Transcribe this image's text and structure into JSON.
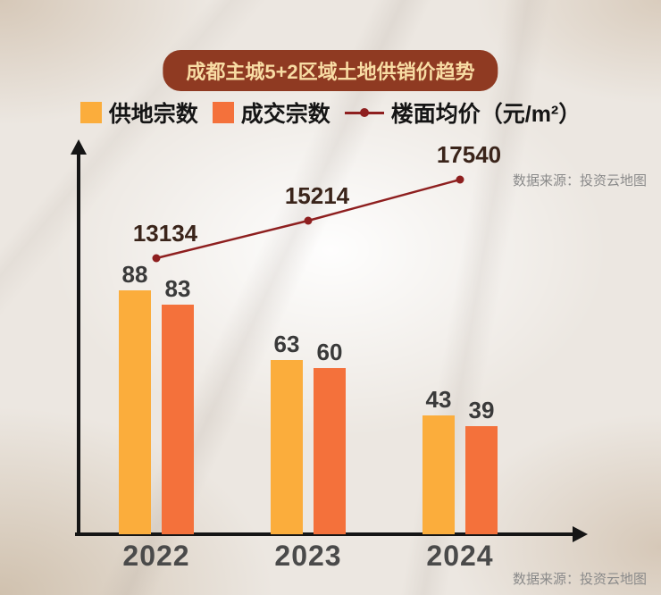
{
  "title": "成都主城5+2区域土地供销价趋势",
  "legend": [
    {
      "label": "供地宗数",
      "color": "#fbad3c",
      "type": "square"
    },
    {
      "label": "成交宗数",
      "color": "#f4713b",
      "type": "square"
    },
    {
      "label": "楼面均价（元/m²）",
      "color": "#8e1f1f",
      "type": "line"
    }
  ],
  "source": "数据来源：投资云地图",
  "chart_data": {
    "type": "bar",
    "subtype": "grouped bars with overlaid line",
    "title": "成都主城5+2区域土地供销价趋势",
    "categories": [
      "2022",
      "2023",
      "2024"
    ],
    "series": [
      {
        "name": "供地宗数",
        "type": "bar",
        "color": "#fbad3c",
        "values": [
          88,
          63,
          43
        ]
      },
      {
        "name": "成交宗数",
        "type": "bar",
        "color": "#f4713b",
        "values": [
          83,
          60,
          39
        ]
      },
      {
        "name": "楼面均价（元/m²）",
        "type": "line",
        "color": "#8e1f1f",
        "values": [
          13134,
          15214,
          17540
        ]
      }
    ],
    "xlabel": "",
    "ylabel": "",
    "value_labels_shown": true,
    "layout": "no gridlines, no tick marks, arrow-capped axes, legend on top"
  }
}
